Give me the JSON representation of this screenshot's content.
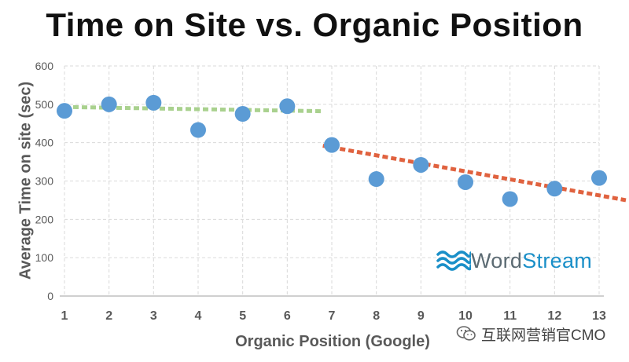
{
  "chart_data": {
    "type": "scatter",
    "title": "Time on Site vs. Organic Position",
    "xlabel": "Organic Position (Google)",
    "ylabel": "Average Time on site (sec)",
    "xlim": [
      1,
      13
    ],
    "ylim": [
      0,
      600
    ],
    "xticks": [
      "1",
      "2",
      "3",
      "4",
      "5",
      "6",
      "7",
      "8",
      "9",
      "10",
      "11",
      "12",
      "13"
    ],
    "yticks": [
      "0",
      "100",
      "200",
      "300",
      "400",
      "500",
      "600"
    ],
    "grid": true,
    "point_color": "#5b9bd5",
    "points": [
      {
        "x": 1,
        "y": 483
      },
      {
        "x": 2,
        "y": 500
      },
      {
        "x": 3,
        "y": 504
      },
      {
        "x": 4,
        "y": 433
      },
      {
        "x": 5,
        "y": 475
      },
      {
        "x": 6,
        "y": 495
      },
      {
        "x": 7,
        "y": 394
      },
      {
        "x": 8,
        "y": 305
      },
      {
        "x": 9,
        "y": 342
      },
      {
        "x": 10,
        "y": 297
      },
      {
        "x": 11,
        "y": 253
      },
      {
        "x": 12,
        "y": 280
      },
      {
        "x": 13,
        "y": 308
      }
    ],
    "trendlines": [
      {
        "color": "#a9d18e",
        "x": [
          1,
          6.8
        ],
        "y": [
          493,
          482
        ]
      },
      {
        "color": "#e0623f",
        "x": [
          6.8,
          14
        ],
        "y": [
          392,
          250
        ]
      }
    ]
  },
  "logo": {
    "part1": "Word",
    "part2": "Stream"
  },
  "watermark": {
    "text": "互联网营销官CMO"
  }
}
